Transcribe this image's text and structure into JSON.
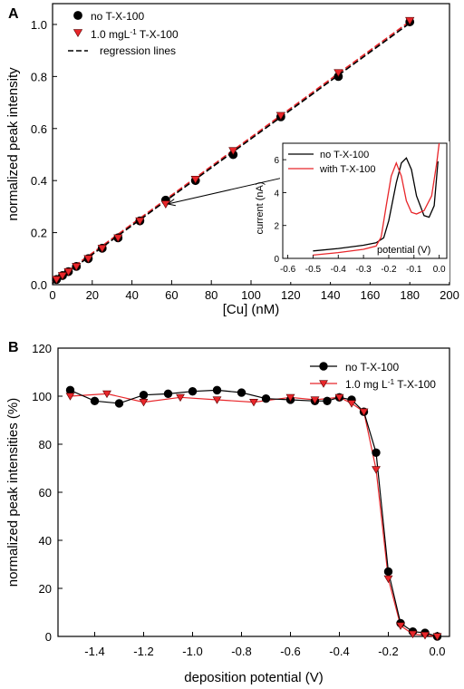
{
  "chart_data": [
    {
      "panel": "A",
      "type": "scatter",
      "xlabel": "[Cu] (nM)",
      "ylabel": "normalized peak intensity",
      "xlim": [
        0,
        200
      ],
      "ylim": [
        0,
        1.08
      ],
      "xticks": [
        0,
        20,
        40,
        60,
        80,
        100,
        120,
        140,
        160,
        180,
        200
      ],
      "yticks": [
        0.0,
        0.2,
        0.4,
        0.6,
        0.8,
        1.0
      ],
      "grid": false,
      "legend_position": "top-left",
      "series": [
        {
          "name": "no T-X-100",
          "color": "#000000",
          "marker": "circle",
          "x": [
            2,
            5,
            8,
            12,
            18,
            25,
            33,
            44,
            57,
            72,
            91,
            115,
            144,
            180
          ],
          "y": [
            0.02,
            0.035,
            0.05,
            0.07,
            0.1,
            0.14,
            0.18,
            0.245,
            0.325,
            0.4,
            0.5,
            0.645,
            0.8,
            1.01
          ]
        },
        {
          "name": "1.0 mgL⁻¹ T-X-100",
          "color": "#e8262a",
          "marker": "triangle-down",
          "x": [
            2,
            5,
            8,
            12,
            18,
            25,
            33,
            44,
            57,
            72,
            91,
            115,
            144,
            180
          ],
          "y": [
            0.02,
            0.035,
            0.05,
            0.07,
            0.1,
            0.14,
            0.18,
            0.245,
            0.31,
            0.405,
            0.515,
            0.65,
            0.815,
            1.015
          ]
        }
      ],
      "regression_lines": {
        "name": "regression lines",
        "lines": [
          {
            "color": "#e8262a",
            "x": [
              0,
              180
            ],
            "y": [
              0.01,
              1.012
            ]
          },
          {
            "color": "#000000",
            "x": [
              0,
              180
            ],
            "y": [
              0.005,
              1.005
            ]
          }
        ]
      },
      "arrow": {
        "from": [
          127,
          0.43
        ],
        "to": [
          58,
          0.31
        ]
      },
      "inset": {
        "type": "line",
        "xlabel": "potential (V)",
        "ylabel": "current (nA)",
        "xlim": [
          -0.62,
          0.03
        ],
        "ylim": [
          0,
          7
        ],
        "xticks": [
          -0.6,
          -0.5,
          -0.4,
          -0.3,
          -0.2,
          -0.1,
          0.0
        ],
        "yticks": [
          0,
          2,
          4,
          6
        ],
        "legend_position": "top-left",
        "series": [
          {
            "name": "no T-X-100",
            "color": "#000000",
            "x": [
              -0.5,
              -0.4,
              -0.3,
              -0.25,
              -0.22,
              -0.2,
              -0.17,
              -0.15,
              -0.13,
              -0.11,
              -0.09,
              -0.06,
              -0.04,
              -0.02,
              -0.005
            ],
            "y": [
              0.45,
              0.6,
              0.8,
              0.95,
              1.25,
              2.3,
              4.6,
              5.8,
              6.1,
              5.4,
              3.8,
              2.6,
              2.5,
              3.2,
              5.9
            ]
          },
          {
            "name": "with T-X-100",
            "color": "#e8262a",
            "x": [
              -0.5,
              -0.4,
              -0.3,
              -0.25,
              -0.23,
              -0.21,
              -0.19,
              -0.17,
              -0.15,
              -0.13,
              -0.11,
              -0.09,
              -0.06,
              -0.03,
              -0.01,
              0.0
            ],
            "y": [
              0.2,
              0.35,
              0.55,
              0.75,
              1.3,
              3.2,
              5.0,
              5.8,
              5.0,
              3.5,
              2.8,
              2.7,
              2.9,
              3.8,
              5.8,
              7.0
            ]
          }
        ]
      }
    },
    {
      "panel": "B",
      "type": "line",
      "xlabel": "deposition potential (V)",
      "ylabel": "normalized peak intensities (%)",
      "xlim": [
        -1.55,
        0.05
      ],
      "ylim": [
        0,
        120
      ],
      "xticks": [
        -1.4,
        -1.2,
        -1.0,
        -0.8,
        -0.6,
        -0.4,
        -0.2,
        0.0
      ],
      "yticks": [
        0,
        20,
        40,
        60,
        80,
        100,
        120
      ],
      "grid": false,
      "legend_position": "top-right",
      "series": [
        {
          "name": "no T-X-100",
          "color": "#000000",
          "marker": "circle",
          "x": [
            -1.5,
            -1.4,
            -1.3,
            -1.2,
            -1.1,
            -1.0,
            -0.9,
            -0.8,
            -0.7,
            -0.6,
            -0.5,
            -0.45,
            -0.4,
            -0.35,
            -0.3,
            -0.25,
            -0.2,
            -0.15,
            -0.1,
            -0.05,
            0.0
          ],
          "y": [
            102.5,
            98,
            97,
            100.5,
            101,
            102,
            102.5,
            101.5,
            99,
            98.5,
            98,
            98,
            99.5,
            98.5,
            93.5,
            76.5,
            27,
            5.5,
            2,
            1.5,
            0
          ]
        },
        {
          "name": "1.0 mg L⁻¹ T-X-100",
          "color": "#e8262a",
          "marker": "triangle-down",
          "x": [
            -1.5,
            -1.35,
            -1.2,
            -1.05,
            -0.9,
            -0.75,
            -0.6,
            -0.5,
            -0.4,
            -0.35,
            -0.3,
            -0.25,
            -0.2,
            -0.15,
            -0.1,
            -0.05,
            0.0
          ],
          "y": [
            100,
            101,
            97.5,
            99.5,
            98.5,
            97.5,
            99.5,
            98.5,
            99.5,
            97,
            93.5,
            69.5,
            24,
            4.5,
            1,
            0.5,
            0
          ]
        }
      ]
    }
  ],
  "panel_labels": {
    "a": "A",
    "b": "B"
  },
  "legend_a": [
    "no T-X-100",
    "1.0 mgL⁻¹ T-X-100",
    "regression lines"
  ],
  "legend_inset": [
    "no T-X-100",
    "with T-X-100"
  ],
  "legend_b": [
    "no T-X-100",
    "1.0 mg L⁻¹ T-X-100"
  ]
}
